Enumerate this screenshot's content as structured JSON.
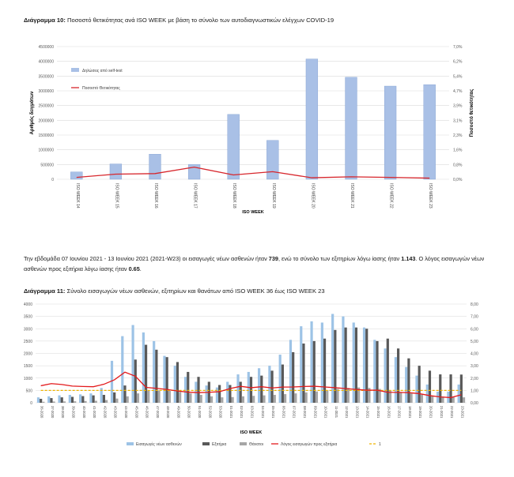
{
  "caption1": {
    "label": "Διάγραμμα 10:",
    "text": " Ποσοστό θετικότητας ανά ISO WEEK με βάση το σύνολο των αυτοδιαγνωστικών ελέγχων COVID-19"
  },
  "paragraph": {
    "t1": "Την εβδομάδα 07 Ιουνίου 2021 - 13 Ιουνίου 2021 (2021-W23) οι εισαγωγές νέων ασθενών ήταν ",
    "b1": "739",
    "t2": ", ενώ το σύνολο των εξιτηρίων λόγω ίασης ήταν ",
    "b2": "1.143",
    "t3": ". Ο λόγος εισαγωγών νέων ασθενών προς εξιτήρια λόγω ίασης ήταν ",
    "b3": "0.65",
    "t4": "."
  },
  "caption2": {
    "label": "Διάγραμμα 11:",
    "text": " Σύνολο εισαγωγών νέων ασθενών, εξιτηρίων και θανάτων από ISO WEEK 36 έως ISO WEEK 23"
  },
  "chart_data": [
    {
      "type": "bar",
      "title": "",
      "xlabel": "ISO WEEK",
      "ylabel": "Αριθμός δειγμάτων",
      "y2label": "Ποσοστό θετικότητας",
      "categories": [
        "ISO WEEK 14",
        "ISO WEEK 15",
        "ISO WEEK 16",
        "ISO WEEK 17",
        "ISO WEEK 18",
        "ISO WEEK 19",
        "ISO WEEK 20",
        "ISO WEEK 21",
        "ISO WEEK 22",
        "ISO WEEK 23"
      ],
      "ylim": [
        0,
        4500000
      ],
      "yticks": [
        "0",
        "500000",
        "1000000",
        "1500000",
        "2000000",
        "2500000",
        "3000000",
        "3500000",
        "4000000",
        "4500000"
      ],
      "y2lim": [
        0,
        7.0
      ],
      "y2ticks": [
        "0,0%",
        "0,8%",
        "1,6%",
        "2,3%",
        "3,1%",
        "3,9%",
        "4,7%",
        "5,4%",
        "6,2%",
        "7,0%"
      ],
      "grid": true,
      "legend_position": "top-left",
      "series": [
        {
          "name": "Δηλώσεις από self-test",
          "kind": "bar",
          "axis": "left",
          "color": "#a9c0e6",
          "values": [
            250000,
            520000,
            850000,
            500000,
            2200000,
            1320000,
            4080000,
            3460000,
            3160000,
            3210000
          ]
        },
        {
          "name": "Ποσοστό Θετικότητας",
          "kind": "line",
          "axis": "right",
          "color": "#d7262c",
          "values": [
            0.1,
            0.27,
            0.3,
            0.64,
            0.23,
            0.4,
            0.08,
            0.13,
            0.1,
            0.06
          ]
        }
      ]
    },
    {
      "type": "bar",
      "title": "",
      "xlabel": "ISO WEEK",
      "categories": [
        "36-2020",
        "37-2020",
        "38-2020",
        "39-2020",
        "40-2020",
        "41-2020",
        "42-2020",
        "43-2020",
        "44-2020",
        "45-2020",
        "46-2020",
        "47-2020",
        "48-2020",
        "49-2020",
        "50-2020",
        "51-2020",
        "52-2020",
        "53-2020",
        "01-2021",
        "02-2021",
        "03-2021",
        "04-2021",
        "05-2021",
        "06-2021",
        "07-2021",
        "08-2021",
        "09-2021",
        "10-2021",
        "11-2021",
        "12-2021",
        "13-2021",
        "14-2021",
        "15-2021",
        "16-2021",
        "17-2021",
        "18-2021",
        "19-2021",
        "20-2021",
        "21-2021",
        "22-2021",
        "23-2021"
      ],
      "ylim": [
        0,
        4000
      ],
      "yticks": [
        "0",
        "500",
        "1000",
        "1500",
        "2000",
        "2500",
        "3000",
        "3500",
        "4000"
      ],
      "y2lim": [
        0,
        8.0
      ],
      "y2ticks": [
        "0,00",
        "1,00",
        "2,00",
        "3,00",
        "4,00",
        "5,00",
        "6,00",
        "7,00",
        "8,00"
      ],
      "grid": true,
      "legend_position": "bottom",
      "series": [
        {
          "name": "Εισαγωγές νέων ασθενών",
          "kind": "bar",
          "axis": "left",
          "color": "#9dc3e6",
          "values": [
            220,
            260,
            300,
            320,
            340,
            380,
            600,
            1700,
            2700,
            3150,
            2850,
            2500,
            1900,
            1500,
            1050,
            850,
            700,
            620,
            850,
            1150,
            1250,
            1400,
            1500,
            1950,
            2550,
            3100,
            3300,
            3250,
            3600,
            3500,
            3250,
            3050,
            2550,
            2200,
            1850,
            1450,
            1100,
            740,
            450,
            450,
            739
          ]
        },
        {
          "name": "Εξιτήρια",
          "kind": "bar",
          "axis": "left",
          "color": "#595959",
          "values": [
            160,
            190,
            220,
            240,
            270,
            300,
            320,
            420,
            700,
            1750,
            2350,
            2150,
            1850,
            1650,
            1250,
            1050,
            850,
            720,
            720,
            850,
            1050,
            1100,
            1300,
            1550,
            2050,
            2400,
            2500,
            2600,
            2950,
            3050,
            3050,
            3000,
            2500,
            2600,
            2200,
            1800,
            1500,
            1300,
            1150,
            1150,
            1143
          ]
        },
        {
          "name": "Θάνατοι",
          "kind": "bar",
          "axis": "left",
          "color": "#a6a6a6",
          "values": [
            40,
            50,
            55,
            60,
            70,
            80,
            110,
            170,
            260,
            380,
            480,
            500,
            480,
            440,
            380,
            320,
            260,
            220,
            230,
            260,
            280,
            300,
            320,
            350,
            380,
            420,
            460,
            500,
            560,
            600,
            620,
            600,
            560,
            500,
            440,
            380,
            330,
            290,
            250,
            230,
            220
          ]
        },
        {
          "name": "Λόγος εισαγωγών προς εξιτήρια",
          "kind": "line",
          "axis": "right",
          "color": "#e31a1c",
          "values": [
            1.38,
            1.55,
            1.48,
            1.35,
            1.32,
            1.3,
            1.5,
            1.86,
            2.48,
            2.15,
            1.25,
            1.17,
            1.08,
            0.95,
            0.86,
            0.82,
            0.85,
            0.9,
            1.15,
            1.33,
            1.22,
            1.3,
            1.2,
            1.27,
            1.28,
            1.32,
            1.34,
            1.28,
            1.22,
            1.15,
            1.08,
            1.02,
            1.02,
            0.85,
            0.84,
            0.82,
            0.74,
            0.58,
            0.47,
            0.42,
            0.65
          ]
        },
        {
          "name": "1",
          "kind": "dashed",
          "axis": "right",
          "color": "#f0b400",
          "values": [
            1,
            1,
            1,
            1,
            1,
            1,
            1,
            1,
            1,
            1,
            1,
            1,
            1,
            1,
            1,
            1,
            1,
            1,
            1,
            1,
            1,
            1,
            1,
            1,
            1,
            1,
            1,
            1,
            1,
            1,
            1,
            1,
            1,
            1,
            1,
            1,
            1,
            1,
            1,
            1,
            1
          ]
        }
      ]
    }
  ]
}
